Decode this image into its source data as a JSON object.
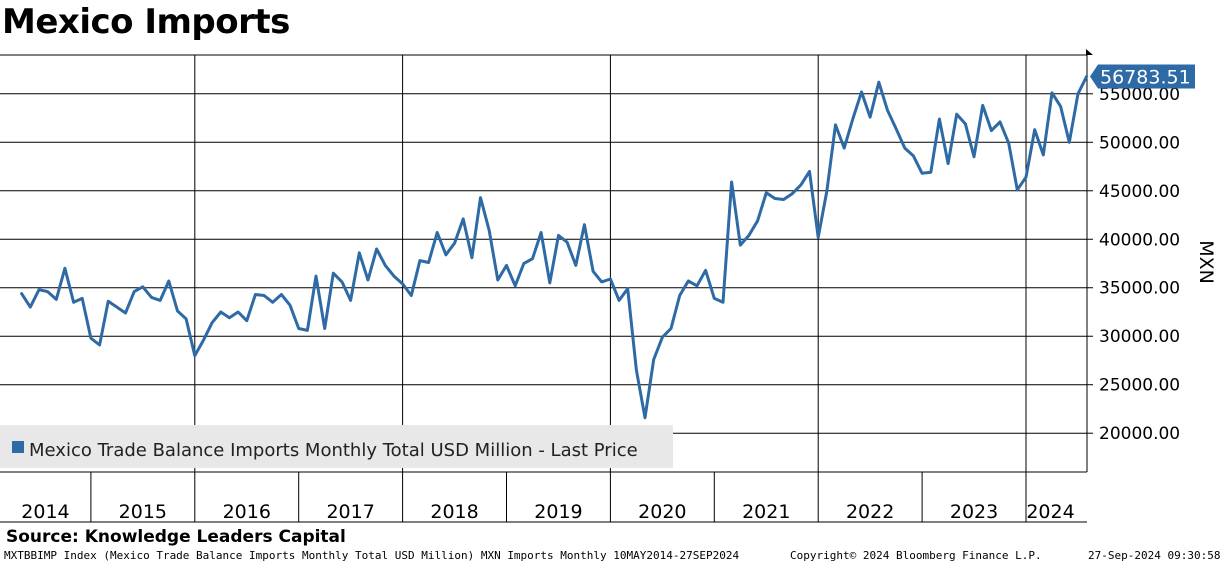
{
  "header": {
    "title": "Mexico Imports"
  },
  "chart_data": {
    "type": "line",
    "title": "Mexico Imports",
    "ylabel": "MXN",
    "ylim": [
      16000,
      59000
    ],
    "yticks": [
      20000,
      25000,
      30000,
      35000,
      40000,
      45000,
      50000,
      55000
    ],
    "ytick_labels": [
      "20000.00",
      "25000.00",
      "30000.00",
      "35000.00",
      "40000.00",
      "45000.00",
      "50000.00",
      "55000.00"
    ],
    "year_labels": [
      "2014",
      "2015",
      "2016",
      "2017",
      "2018",
      "2019",
      "2020",
      "2021",
      "2022",
      "2023",
      "2024"
    ],
    "x_start": "2014-05",
    "x_end": "2024-09",
    "legend": {
      "label": "Mexico Trade Balance Imports Monthly Total USD Million - Last Price",
      "placement": "bottom-left",
      "color": "#2e6aa5"
    },
    "last_price_label": "56783.51",
    "series": [
      {
        "name": "Mexico Trade Balance Imports Monthly Total USD Million - Last Price",
        "color": "#2e6aa5",
        "values": [
          34400,
          33000,
          34800,
          34600,
          33800,
          37000,
          33500,
          33900,
          29800,
          29100,
          33600,
          33000,
          32400,
          34600,
          35100,
          34000,
          33700,
          35700,
          32600,
          31800,
          28000,
          29600,
          31400,
          32500,
          31900,
          32500,
          31600,
          34300,
          34200,
          33500,
          34300,
          33200,
          30800,
          30600,
          36200,
          30800,
          36500,
          35600,
          33700,
          38600,
          35800,
          39000,
          37300,
          36200,
          35400,
          34200,
          37800,
          37600,
          40700,
          38400,
          39600,
          42100,
          38100,
          44300,
          40900,
          35800,
          37300,
          35200,
          37500,
          38000,
          40700,
          35500,
          40400,
          39700,
          37300,
          41500,
          36700,
          35600,
          35900,
          33700,
          34900,
          26500,
          21600,
          27600,
          29900,
          30800,
          34200,
          35700,
          35200,
          36800,
          33900,
          33500,
          45900,
          39400,
          40400,
          41900,
          44800,
          44200,
          44100,
          44700,
          45600,
          47000,
          40200,
          45000,
          51800,
          49400,
          52400,
          55200,
          52600,
          56200,
          53300,
          51400,
          49400,
          48600,
          46800,
          46900,
          52400,
          47800,
          52900,
          51900,
          48500,
          53800,
          51200,
          52100,
          49900,
          45100,
          46400,
          51300,
          48700,
          55100,
          53700,
          50000,
          55000,
          56783
        ]
      }
    ]
  },
  "source": "Source: Knowledge Leaders Capital",
  "footer": {
    "left": "MXTBBIMP Index (Mexico Trade Balance Imports Monthly Total USD Million) MXN Imports  Monthly 10MAY2014-27SEP2024",
    "copyright": "Copyright© 2024 Bloomberg Finance L.P.",
    "timestamp": "27-Sep-2024 09:30:58"
  }
}
